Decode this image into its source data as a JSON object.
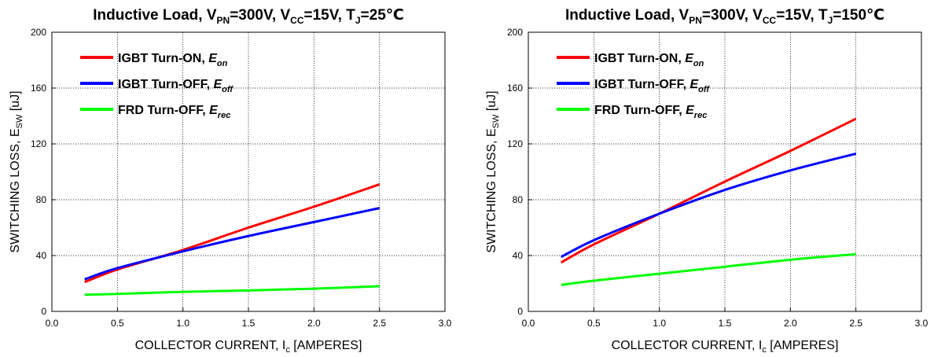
{
  "chart_data": [
    {
      "type": "line",
      "title": {
        "main": "Inductive Load, V",
        "vpn_sub": "PN",
        "vpn_eq": "=300V, V",
        "vcc_sub": "CC",
        "vcc_eq": "=15V, T",
        "tj_sub": "J",
        "tj_eq": "=25℃"
      },
      "xlabel": {
        "main": "COLLECTOR CURRENT, I",
        "sub": "c",
        "rest": " [AMPERES]"
      },
      "ylabel": {
        "main": "SWITCHING LOSS, E",
        "sub": "SW",
        "rest": " [uJ]"
      },
      "xlim": [
        0.0,
        3.0
      ],
      "ylim": [
        0,
        200
      ],
      "xticks": [
        "0.0",
        "0.5",
        "1.0",
        "1.5",
        "2.0",
        "2.5",
        "3.0"
      ],
      "yticks": [
        "0",
        "40",
        "80",
        "120",
        "160",
        "200"
      ],
      "grid": true,
      "legend_position": "top-left",
      "series": [
        {
          "name": "IGBT Turn-ON, ",
          "name_italic": "E",
          "name_sub": "on",
          "color": "#ff0000",
          "x": [
            0.25,
            0.5,
            1.0,
            1.5,
            2.0,
            2.5
          ],
          "y": [
            21,
            30,
            44,
            60,
            75,
            91
          ]
        },
        {
          "name": "IGBT Turn-OFF, ",
          "name_italic": "E",
          "name_sub": "off",
          "color": "#0000ff",
          "x": [
            0.25,
            0.5,
            1.0,
            1.5,
            2.0,
            2.5
          ],
          "y": [
            23,
            31,
            43,
            54,
            64,
            74
          ]
        },
        {
          "name": "FRD Turn-OFF, ",
          "name_italic": "E",
          "name_sub": "rec",
          "color": "#00ff00",
          "x": [
            0.25,
            0.5,
            1.0,
            1.5,
            2.0,
            2.5
          ],
          "y": [
            12,
            12.5,
            14,
            15,
            16.3,
            18
          ]
        }
      ]
    },
    {
      "type": "line",
      "title": {
        "main": "Inductive Load, V",
        "vpn_sub": "PN",
        "vpn_eq": "=300V, V",
        "vcc_sub": "CC",
        "vcc_eq": "=15V, T",
        "tj_sub": "J",
        "tj_eq": "=150℃"
      },
      "xlabel": {
        "main": "COLLECTOR CURRENT, I",
        "sub": "c",
        "rest": " [AMPERES]"
      },
      "ylabel": {
        "main": "SWITCHING LOSS, E",
        "sub": "SW",
        "rest": " [uJ]"
      },
      "xlim": [
        0.0,
        3.0
      ],
      "ylim": [
        0,
        200
      ],
      "xticks": [
        "0.0",
        "0.5",
        "1.0",
        "1.5",
        "2.0",
        "2.5",
        "3.0"
      ],
      "yticks": [
        "0",
        "40",
        "80",
        "120",
        "160",
        "200"
      ],
      "grid": true,
      "legend_position": "top-left",
      "series": [
        {
          "name": "IGBT Turn-ON, ",
          "name_italic": "E",
          "name_sub": "on",
          "color": "#ff0000",
          "x": [
            0.25,
            0.5,
            1.0,
            1.5,
            2.0,
            2.5
          ],
          "y": [
            35,
            48,
            70,
            93,
            115,
            138
          ]
        },
        {
          "name": "IGBT Turn-OFF, ",
          "name_italic": "E",
          "name_sub": "off",
          "color": "#0000ff",
          "x": [
            0.25,
            0.5,
            1.0,
            1.5,
            2.0,
            2.5
          ],
          "y": [
            39,
            51,
            70,
            87,
            101,
            113
          ]
        },
        {
          "name": "FRD Turn-OFF, ",
          "name_italic": "E",
          "name_sub": "rec",
          "color": "#00ff00",
          "x": [
            0.25,
            0.5,
            1.0,
            1.5,
            2.0,
            2.5
          ],
          "y": [
            19,
            22,
            27,
            32,
            37,
            41
          ]
        }
      ]
    }
  ]
}
